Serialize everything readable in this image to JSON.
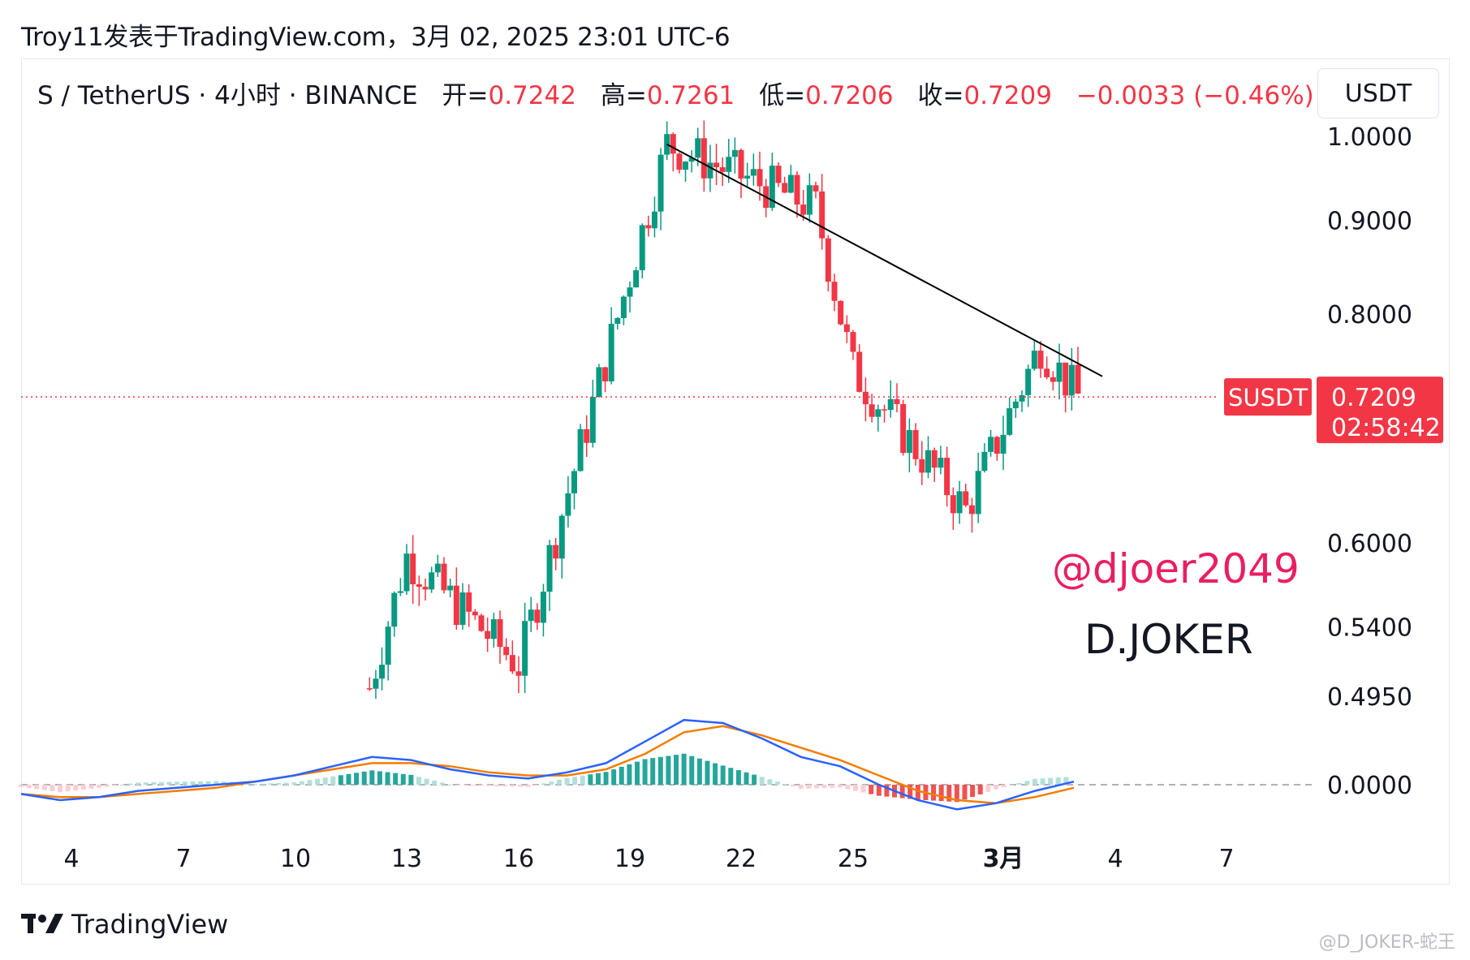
{
  "header": {
    "title": "Troy11发表于TradingView.com，3月 02, 2025 23:01 UTC-6"
  },
  "legend": {
    "symbol": "S / TetherUS · 4小时 · BINANCE",
    "open_label": "开=",
    "open": "0.7242",
    "high_label": "高=",
    "high": "0.7261",
    "low_label": "低=",
    "low": "0.7206",
    "close_label": "收=",
    "close": "0.7209",
    "change": "−0.0033 (−0.46%)"
  },
  "currency_button": "USDT",
  "price_tag": {
    "symbol": "SUSDT",
    "price": "0.7209",
    "countdown": "02:58:42"
  },
  "annotations": {
    "handle": "@djoer2049",
    "brand": "D.JOKER"
  },
  "footer": {
    "logo_text": "TradingView"
  },
  "watermark": "@D_JOKER-蛇王",
  "colors": {
    "up": "#089981",
    "down": "#f23645",
    "macd_line": "#2962ff",
    "signal_line": "#f57c00",
    "handle": "#e91e63",
    "trendline": "#000000"
  },
  "chart_data": {
    "type": "candlestick",
    "price_axis_ticks": [
      "1.0000",
      "0.9000",
      "0.8000",
      "0.7209",
      "0.6000",
      "0.5400",
      "0.4950"
    ],
    "price_axis_scale": "log",
    "y_range": [
      0.495,
      1.0
    ],
    "time_axis_ticks": [
      "4",
      "7",
      "10",
      "13",
      "16",
      "19",
      "22",
      "25",
      "3月",
      "4",
      "7"
    ],
    "last_price": 0.7209,
    "trendline": {
      "from": {
        "date": "2月20",
        "price": 0.99
      },
      "to": {
        "date": "3月3",
        "price": 0.755
      }
    },
    "key_points": [
      {
        "date": "2月12",
        "price": 0.5
      },
      {
        "date": "2月13",
        "price": 0.59
      },
      {
        "date": "2月16",
        "price": 0.515
      },
      {
        "date": "2月20",
        "price": 0.99
      },
      {
        "date": "2月24",
        "price": 0.915
      },
      {
        "date": "2月25",
        "price": 0.745
      },
      {
        "date": "2月28",
        "price": 0.625
      },
      {
        "date": "3月2",
        "price": 0.77
      },
      {
        "date": "3月3",
        "price": 0.7209
      }
    ],
    "macd": {
      "zero_label": "0.0000",
      "macd_line_shape": [
        -0.3,
        -0.5,
        -0.4,
        -0.2,
        -0.1,
        0,
        0.1,
        0.3,
        0.6,
        0.9,
        0.8,
        0.5,
        0.3,
        0.2,
        0.4,
        0.7,
        1.4,
        2.1,
        2.0,
        1.5,
        0.9,
        0.6,
        0.0,
        -0.5,
        -0.8,
        -0.6,
        -0.2,
        0.1
      ],
      "signal_line_shape": [
        -0.3,
        -0.4,
        -0.4,
        -0.3,
        -0.2,
        -0.1,
        0.1,
        0.3,
        0.5,
        0.7,
        0.7,
        0.6,
        0.4,
        0.3,
        0.3,
        0.5,
        1.0,
        1.7,
        1.9,
        1.6,
        1.2,
        0.8,
        0.3,
        -0.2,
        -0.5,
        -0.6,
        -0.4,
        -0.1
      ]
    }
  }
}
